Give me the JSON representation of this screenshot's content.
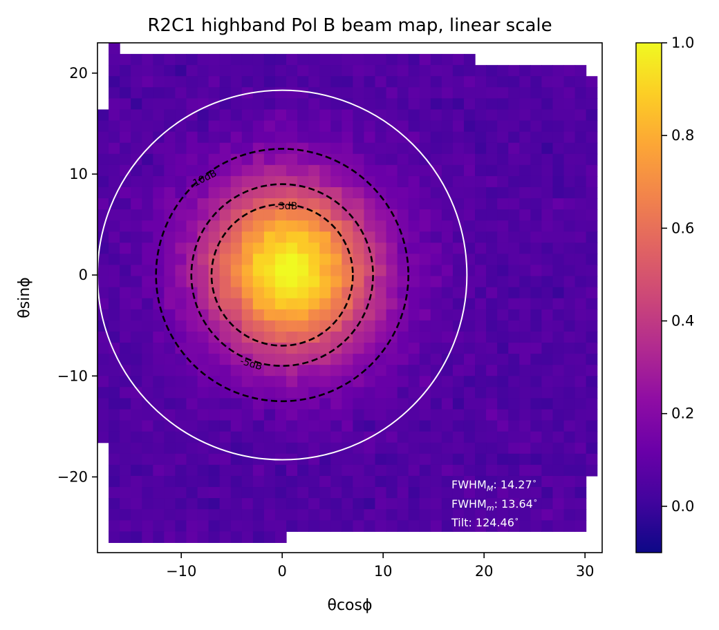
{
  "chart_data": {
    "type": "heatmap",
    "title": "R2C1 highband Pol B beam map, linear scale",
    "xlabel": "θcosϕ",
    "ylabel": "θsinϕ",
    "xlim": [
      -18.3,
      31.7
    ],
    "ylim": [
      -27.5,
      23.0
    ],
    "xticks": [
      -10,
      0,
      10,
      20,
      30
    ],
    "xtick_labels": [
      "−10",
      "0",
      "10",
      "20",
      "30"
    ],
    "yticks": [
      -20,
      -10,
      0,
      10,
      20
    ],
    "ytick_labels": [
      "−20",
      "−10",
      "0",
      "10",
      "20"
    ],
    "colormap": "plasma",
    "colorbar": {
      "vmin": -0.1,
      "vmax": 1.0,
      "ticks": [
        0.0,
        0.2,
        0.4,
        0.6,
        0.8,
        1.0
      ],
      "tick_labels": [
        "0.0",
        "0.2",
        "0.4",
        "0.6",
        "0.8",
        "1.0"
      ]
    },
    "beam": {
      "center": [
        0.7,
        0.5
      ],
      "peak": 1.0,
      "background": 0.05,
      "sigma_major": 6.06,
      "sigma_minor": 5.79,
      "tilt_deg": 124.46
    },
    "contours": [
      {
        "label": "-3dB",
        "center": [
          0.0,
          0.0
        ],
        "radii": [
          7.0,
          7.0
        ],
        "style": "dashed"
      },
      {
        "label": "-5dB",
        "center": [
          0.0,
          0.0
        ],
        "radii": [
          9.0,
          9.0
        ],
        "style": "dashed"
      },
      {
        "label": "-10dB",
        "center": [
          0.0,
          0.0
        ],
        "radii": [
          12.5,
          12.5
        ],
        "style": "dashed"
      }
    ],
    "white_circle": {
      "center": [
        0.0,
        0.0
      ],
      "radius": 18.3
    },
    "annotations": {
      "fwhm_major_label": "FWHM",
      "fwhm_major_sub": "M",
      "fwhm_major_value": ": 14.27",
      "fwhm_minor_label": "FWHM",
      "fwhm_minor_sub": "m",
      "fwhm_minor_value": ": 13.64",
      "tilt_label": "Tilt: 124.46",
      "degree_symbol": "∘"
    }
  }
}
